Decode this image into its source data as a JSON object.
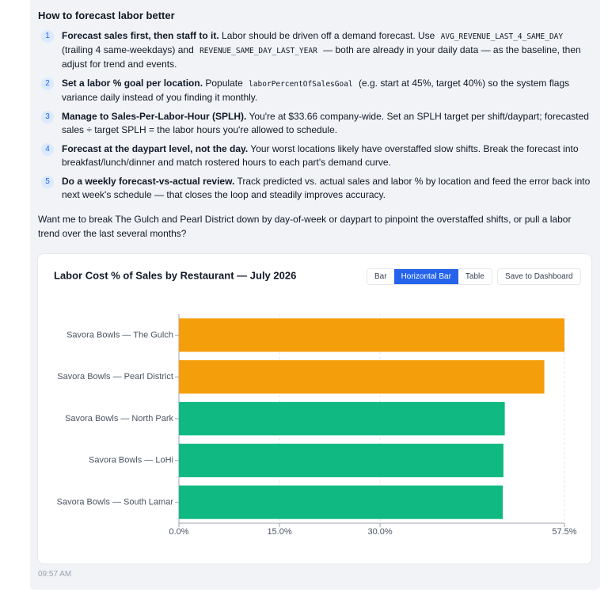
{
  "heading": "How to forecast labor better",
  "items": [
    {
      "marker": "1",
      "lead": "Forecast sales first, then staff to it.",
      "segments": [
        {
          "text": " Labor should be driven off a demand forecast. Use "
        },
        {
          "code": "AVG_REVENUE_LAST_4_SAME_DAY"
        },
        {
          "text": " (trailing 4 same-weekdays) and "
        },
        {
          "code": "REVENUE_SAME_DAY_LAST_YEAR"
        },
        {
          "text": " — both are already in your daily data — as the baseline, then adjust for trend and events."
        }
      ]
    },
    {
      "marker": "2",
      "lead": "Set a labor % goal per location.",
      "segments": [
        {
          "text": " Populate "
        },
        {
          "code": "laborPercentOfSalesGoal"
        },
        {
          "text": " (e.g. start at 45%, target 40%) so the system flags variance daily instead of you finding it monthly."
        }
      ]
    },
    {
      "marker": "3",
      "lead": "Manage to Sales-Per-Labor-Hour (SPLH).",
      "segments": [
        {
          "text": " You're at $33.66 company-wide. Set an SPLH target per shift/daypart; forecasted sales ÷ target SPLH = the labor hours you're allowed to schedule."
        }
      ]
    },
    {
      "marker": "4",
      "lead": "Forecast at the daypart level, not the day.",
      "segments": [
        {
          "text": " Your worst locations likely have overstaffed slow shifts. Break the forecast into breakfast/lunch/dinner and match rostered hours to each part's demand curve."
        }
      ]
    },
    {
      "marker": "5",
      "lead": "Do a weekly forecast-vs-actual review.",
      "segments": [
        {
          "text": " Track predicted vs. actual sales and labor % by location and feed the error back into next week's schedule — that closes the loop and steadily improves accuracy."
        }
      ]
    }
  ],
  "followup": "Want me to break The Gulch and Pearl District down by day-of-week or daypart to pinpoint the overstaffed shifts, or pull a labor trend over the last several months?",
  "view_buttons": [
    "Bar",
    "Horizontal Bar",
    "Table"
  ],
  "active_view": 1,
  "save_button": "Save to Dashboard",
  "chart_data": {
    "type": "hbar",
    "title": "Labor Cost % of Sales by Restaurant — July 2026",
    "categories": [
      "Savora Bowls — The Gulch",
      "Savora Bowls — Pearl District",
      "Savora Bowls — North Park",
      "Savora Bowls — LoHi",
      "Savora Bowls — South Lamar"
    ],
    "values": [
      57.5,
      54.5,
      48.6,
      48.4,
      48.3
    ],
    "colors": [
      "#f59e0b",
      "#f59e0b",
      "#10b981",
      "#10b981",
      "#10b981"
    ],
    "xlim": [
      0,
      57.5
    ],
    "xticks": [
      {
        "value": 0,
        "label": "0.0%"
      },
      {
        "value": 15,
        "label": "15.0%"
      },
      {
        "value": 30,
        "label": "30.0%"
      },
      {
        "value": 57.5,
        "label": "57.5%"
      }
    ],
    "grid": true
  },
  "timestamp": "09:57 AM"
}
